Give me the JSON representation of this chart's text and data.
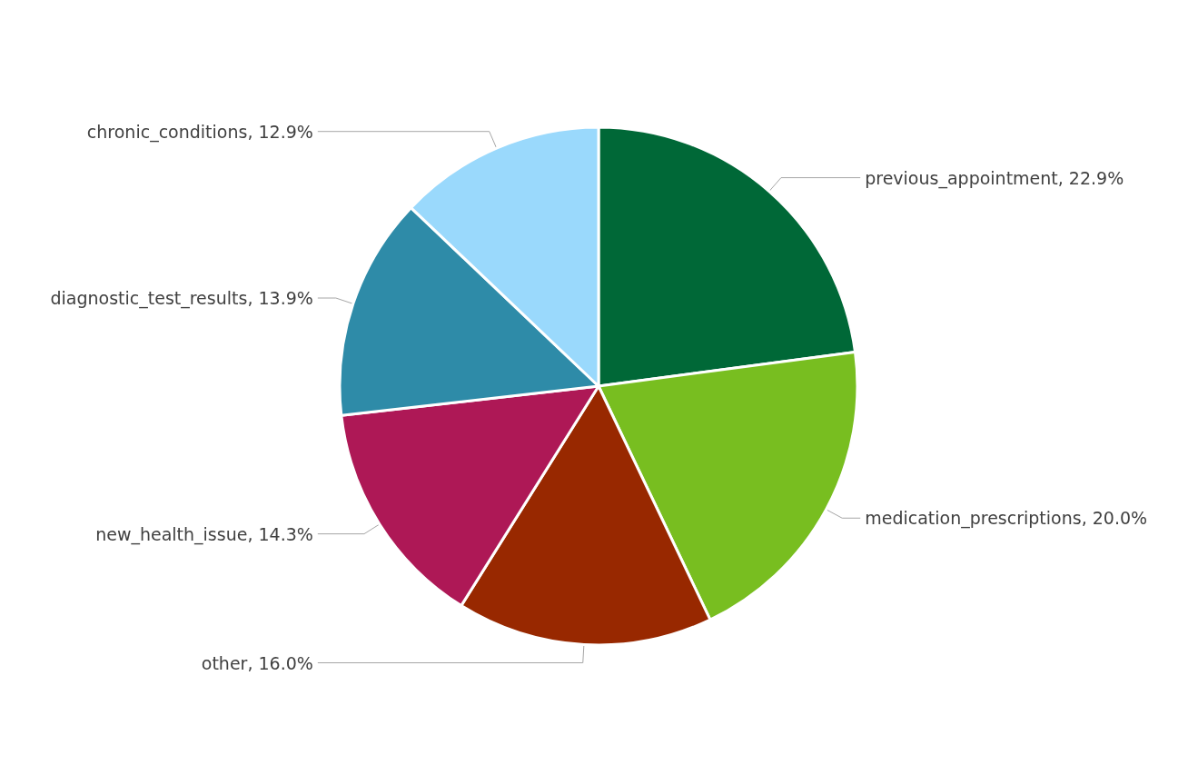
{
  "chart_data": {
    "type": "pie",
    "categories": [
      "previous_appointment",
      "medication_prescriptions",
      "other",
      "new_health_issue",
      "diagnostic_test_results",
      "chronic_conditions"
    ],
    "values": [
      22.9,
      20.0,
      16.0,
      14.3,
      13.9,
      12.9
    ],
    "value_labels": [
      "22.9%",
      "20.0%",
      "16.0%",
      "14.3%",
      "13.9%",
      "12.9%"
    ],
    "colors": [
      "#006837",
      "#78be20",
      "#982800",
      "#ae1856",
      "#2e8ba8",
      "#9ad9fc"
    ],
    "legend": false
  }
}
